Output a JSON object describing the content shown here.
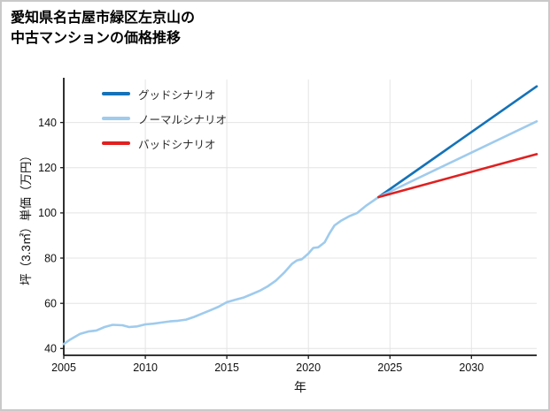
{
  "page": {
    "title_line1": "愛知県名古屋市緑区左京山の",
    "title_line2": "中古マンションの価格推移"
  },
  "chart_data": {
    "type": "line",
    "title": "愛知県名古屋市緑区左京山の中古マンションの価格推移",
    "xlabel": "年",
    "ylabel": "坪（3.3㎡）単価（万円）",
    "xlim": [
      2005,
      2034
    ],
    "ylim": [
      37,
      159
    ],
    "xticks": [
      2005,
      2010,
      2015,
      2020,
      2025,
      2030
    ],
    "yticks": [
      40,
      60,
      80,
      100,
      120,
      140
    ],
    "grid": true,
    "legend_position": "upper-left",
    "legend": [
      {
        "label": "グッドシナリオ",
        "color": "#1472b8"
      },
      {
        "label": "ノーマルシナリオ",
        "color": "#9fcbed"
      },
      {
        "label": "バッドシナリオ",
        "color": "#e02020"
      }
    ],
    "series": [
      {
        "name": "history",
        "color": "#9fcbed",
        "x": [
          2005.0,
          2005.4,
          2006.0,
          2006.5,
          2007.0,
          2007.5,
          2008.0,
          2008.6,
          2009.0,
          2009.5,
          2010.0,
          2010.5,
          2011.0,
          2011.5,
          2012.0,
          2012.5,
          2013.0,
          2013.5,
          2014.0,
          2014.5,
          2015.0,
          2015.5,
          2016.0,
          2016.5,
          2017.0,
          2017.5,
          2018.0,
          2018.5,
          2019.0,
          2019.3,
          2019.6,
          2020.0,
          2020.3,
          2020.6,
          2021.0,
          2021.3,
          2021.6,
          2022.0,
          2022.5,
          2023.0,
          2023.5,
          2024.3
        ],
        "y": [
          42,
          44,
          46.5,
          47.5,
          48,
          49.5,
          50.5,
          50.3,
          49.5,
          49.8,
          50.7,
          51,
          51.5,
          52,
          52.3,
          52.8,
          54,
          55.5,
          57,
          58.5,
          60.5,
          61.5,
          62.5,
          64,
          65.5,
          67.5,
          70,
          73.5,
          77.5,
          79,
          79.5,
          82,
          84.5,
          84.8,
          87,
          91,
          94.5,
          96.5,
          98.5,
          100,
          103,
          107
        ]
      },
      {
        "name": "グッドシナリオ",
        "color": "#1472b8",
        "x": [
          2024.3,
          2034
        ],
        "y": [
          107,
          156
        ]
      },
      {
        "name": "ノーマルシナリオ",
        "color": "#9fcbed",
        "x": [
          2024.3,
          2034
        ],
        "y": [
          107,
          140.5
        ]
      },
      {
        "name": "バッドシナリオ",
        "color": "#e02020",
        "x": [
          2024.3,
          2034
        ],
        "y": [
          107,
          126
        ]
      }
    ]
  }
}
